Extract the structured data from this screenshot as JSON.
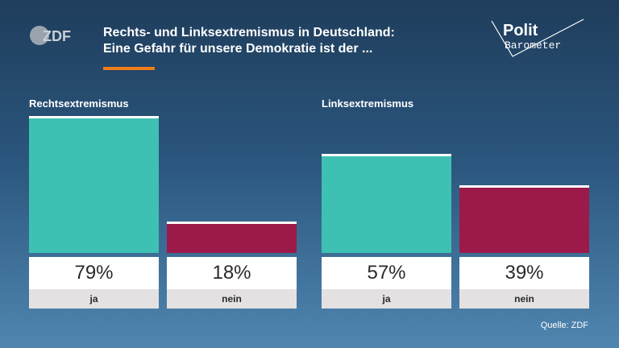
{
  "brand": {
    "logo_text": "ZDF",
    "program_logo_line1": "Polit",
    "program_logo_line2": "Barometer"
  },
  "header": {
    "title_line1": "Rechts- und Linksextremismus in Deutschland:",
    "title_line2": "Eine Gefahr für unsere Demokratie ist der ..."
  },
  "colors": {
    "accent": "#f07d1a",
    "ja": "#3ec1b3",
    "nein": "#9b1a4a"
  },
  "chart_data": [
    {
      "type": "bar",
      "title": "Rechtsextremismus",
      "categories": [
        "ja",
        "nein"
      ],
      "values": [
        79,
        18
      ],
      "value_labels": [
        "79%",
        "18%"
      ],
      "ylim": [
        0,
        79
      ]
    },
    {
      "type": "bar",
      "title": "Linksextremismus",
      "categories": [
        "ja",
        "nein"
      ],
      "values": [
        57,
        39
      ],
      "value_labels": [
        "57%",
        "39%"
      ],
      "ylim": [
        0,
        79
      ]
    }
  ],
  "footer": {
    "source": "Quelle: ZDF"
  }
}
